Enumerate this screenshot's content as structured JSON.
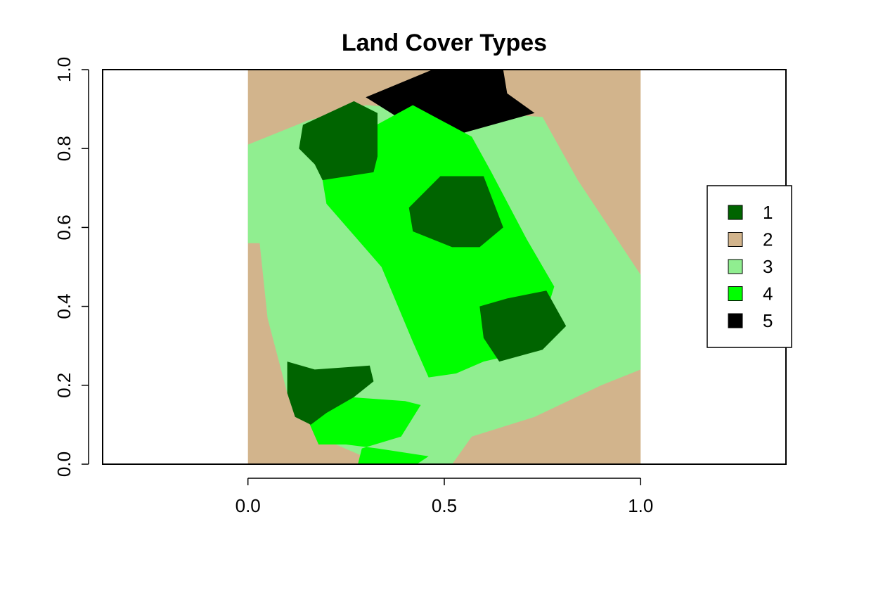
{
  "chart_data": {
    "type": "heatmap",
    "title": "Land Cover Types",
    "xlabel": "",
    "ylabel": "",
    "xlim": [
      -0.37,
      1.37
    ],
    "ylim": [
      0.0,
      1.0
    ],
    "x_ticks": [
      {
        "value": 0.0,
        "label": "0.0"
      },
      {
        "value": 0.5,
        "label": "0.5"
      },
      {
        "value": 1.0,
        "label": "1.0"
      }
    ],
    "y_ticks": [
      {
        "value": 0.0,
        "label": "0.0"
      },
      {
        "value": 0.2,
        "label": "0.2"
      },
      {
        "value": 0.4,
        "label": "0.4"
      },
      {
        "value": 0.6,
        "label": "0.6"
      },
      {
        "value": 0.8,
        "label": "0.8"
      },
      {
        "value": 1.0,
        "label": "1.0"
      }
    ],
    "grid": false,
    "legend_position": "right",
    "classes": [
      {
        "value": 1,
        "label": "1",
        "color": "#006400"
      },
      {
        "value": 2,
        "label": "2",
        "color": "#D2B48C"
      },
      {
        "value": 3,
        "label": "3",
        "color": "#90EE90"
      },
      {
        "value": 4,
        "label": "4",
        "color": "#00FF00"
      },
      {
        "value": 5,
        "label": "5",
        "color": "#000000"
      }
    ],
    "raster_extent": {
      "x": [
        0.0,
        1.0
      ],
      "y": [
        0.0,
        1.0
      ]
    },
    "regions": [
      {
        "class": 2,
        "polygon": [
          [
            0,
            0
          ],
          [
            1,
            0
          ],
          [
            1,
            1
          ],
          [
            0,
            1
          ]
        ]
      },
      {
        "class": 3,
        "polygon": [
          [
            0,
            0.81
          ],
          [
            0.15,
            0.87
          ],
          [
            0.3,
            0.91
          ],
          [
            0.75,
            0.88
          ],
          [
            0.84,
            0.72
          ],
          [
            1.0,
            0.48
          ],
          [
            1.0,
            0.24
          ],
          [
            0.9,
            0.2
          ],
          [
            0.73,
            0.12
          ],
          [
            0.57,
            0.07
          ],
          [
            0.52,
            0
          ],
          [
            0.34,
            0
          ],
          [
            0.2,
            0.06
          ],
          [
            0.1,
            0.18
          ],
          [
            0.05,
            0.37
          ],
          [
            0.03,
            0.56
          ],
          [
            0,
            0.56
          ]
        ]
      },
      {
        "class": 5,
        "polygon": [
          [
            0.3,
            0.93
          ],
          [
            0.47,
            1.0
          ],
          [
            0.65,
            1.0
          ],
          [
            0.66,
            0.94
          ],
          [
            0.73,
            0.89
          ],
          [
            0.55,
            0.84
          ],
          [
            0.43,
            0.84
          ],
          [
            0.38,
            0.88
          ]
        ]
      },
      {
        "class": 4,
        "polygon": [
          [
            0.18,
            0.78
          ],
          [
            0.42,
            0.91
          ],
          [
            0.57,
            0.83
          ],
          [
            0.62,
            0.74
          ],
          [
            0.71,
            0.57
          ],
          [
            0.78,
            0.45
          ],
          [
            0.73,
            0.29
          ],
          [
            0.6,
            0.26
          ],
          [
            0.53,
            0.23
          ],
          [
            0.46,
            0.22
          ],
          [
            0.42,
            0.31
          ],
          [
            0.34,
            0.5
          ],
          [
            0.27,
            0.58
          ],
          [
            0.2,
            0.66
          ]
        ]
      },
      {
        "class": 4,
        "polygon": [
          [
            0.14,
            0.14
          ],
          [
            0.26,
            0.17
          ],
          [
            0.4,
            0.16
          ],
          [
            0.44,
            0.15
          ],
          [
            0.39,
            0.07
          ],
          [
            0.29,
            0.04
          ],
          [
            0.28,
            0
          ],
          [
            0.43,
            0
          ],
          [
            0.46,
            0.02
          ],
          [
            0.33,
            0.04
          ],
          [
            0.25,
            0.05
          ],
          [
            0.18,
            0.05
          ]
        ]
      },
      {
        "class": 1,
        "polygon": [
          [
            0.14,
            0.86
          ],
          [
            0.27,
            0.92
          ],
          [
            0.33,
            0.89
          ],
          [
            0.33,
            0.78
          ],
          [
            0.32,
            0.74
          ],
          [
            0.19,
            0.72
          ],
          [
            0.17,
            0.76
          ],
          [
            0.13,
            0.8
          ]
        ]
      },
      {
        "class": 1,
        "polygon": [
          [
            0.41,
            0.65
          ],
          [
            0.49,
            0.73
          ],
          [
            0.6,
            0.73
          ],
          [
            0.65,
            0.6
          ],
          [
            0.59,
            0.55
          ],
          [
            0.52,
            0.55
          ],
          [
            0.42,
            0.59
          ]
        ]
      },
      {
        "class": 1,
        "polygon": [
          [
            0.59,
            0.4
          ],
          [
            0.66,
            0.42
          ],
          [
            0.76,
            0.44
          ],
          [
            0.81,
            0.35
          ],
          [
            0.75,
            0.29
          ],
          [
            0.64,
            0.26
          ],
          [
            0.6,
            0.32
          ]
        ]
      },
      {
        "class": 1,
        "polygon": [
          [
            0.1,
            0.26
          ],
          [
            0.17,
            0.24
          ],
          [
            0.31,
            0.25
          ],
          [
            0.32,
            0.21
          ],
          [
            0.27,
            0.17
          ],
          [
            0.2,
            0.13
          ],
          [
            0.16,
            0.1
          ],
          [
            0.12,
            0.12
          ],
          [
            0.1,
            0.18
          ]
        ]
      }
    ]
  }
}
